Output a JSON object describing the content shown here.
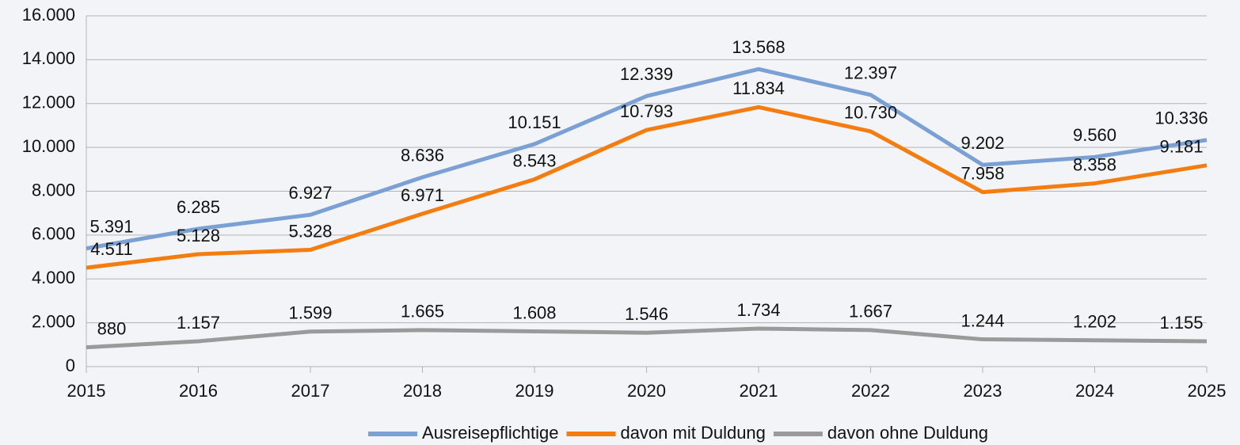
{
  "chart_data": {
    "type": "line",
    "categories": [
      "2015",
      "2016",
      "2017",
      "2018",
      "2019",
      "2020",
      "2021",
      "2022",
      "2023",
      "2024",
      "2025"
    ],
    "series": [
      {
        "name": "Ausreisepflichtige",
        "color": "#7aa0d4",
        "values": [
          5391,
          6285,
          6927,
          8636,
          10151,
          12339,
          13568,
          12397,
          9202,
          9560,
          10336
        ],
        "value_labels": [
          "5.391",
          "6.285",
          "6.927",
          "8.636",
          "10.151",
          "12.339",
          "13.568",
          "12.397",
          "9.202",
          "9.560",
          "10.336"
        ]
      },
      {
        "name": "davon mit Duldung",
        "color": "#f57d0f",
        "values": [
          4511,
          5128,
          5328,
          6971,
          8543,
          10793,
          11834,
          10730,
          7958,
          8358,
          9181
        ],
        "value_labels": [
          "4.511",
          "5.128",
          "5.328",
          "6.971",
          "8.543",
          "10.793",
          "11.834",
          "10.730",
          "7.958",
          "8.358",
          "9.181"
        ]
      },
      {
        "name": "davon ohne Duldung",
        "color": "#9a9a9a",
        "values": [
          880,
          1157,
          1599,
          1665,
          1608,
          1546,
          1734,
          1667,
          1244,
          1202,
          1155
        ],
        "value_labels": [
          "880",
          "1.157",
          "1.599",
          "1.665",
          "1.608",
          "1.546",
          "1.734",
          "1.667",
          "1.244",
          "1.202",
          "1.155"
        ]
      }
    ],
    "ylim": [
      0,
      16000
    ],
    "yticks": [
      0,
      {
        "value": 2000,
        "label": "2.000"
      },
      {
        "value": 4000,
        "label": "4.000"
      },
      {
        "value": 6000,
        "label": "6.000"
      },
      {
        "value": 8000,
        "label": "8.000"
      },
      {
        "value": 10000,
        "label": "10.000"
      },
      {
        "value": 12000,
        "label": "12.000"
      },
      {
        "value": 14000,
        "label": "14.000"
      },
      {
        "value": 16000,
        "label": "16.000"
      }
    ],
    "grid": true,
    "legend": "bottom"
  }
}
